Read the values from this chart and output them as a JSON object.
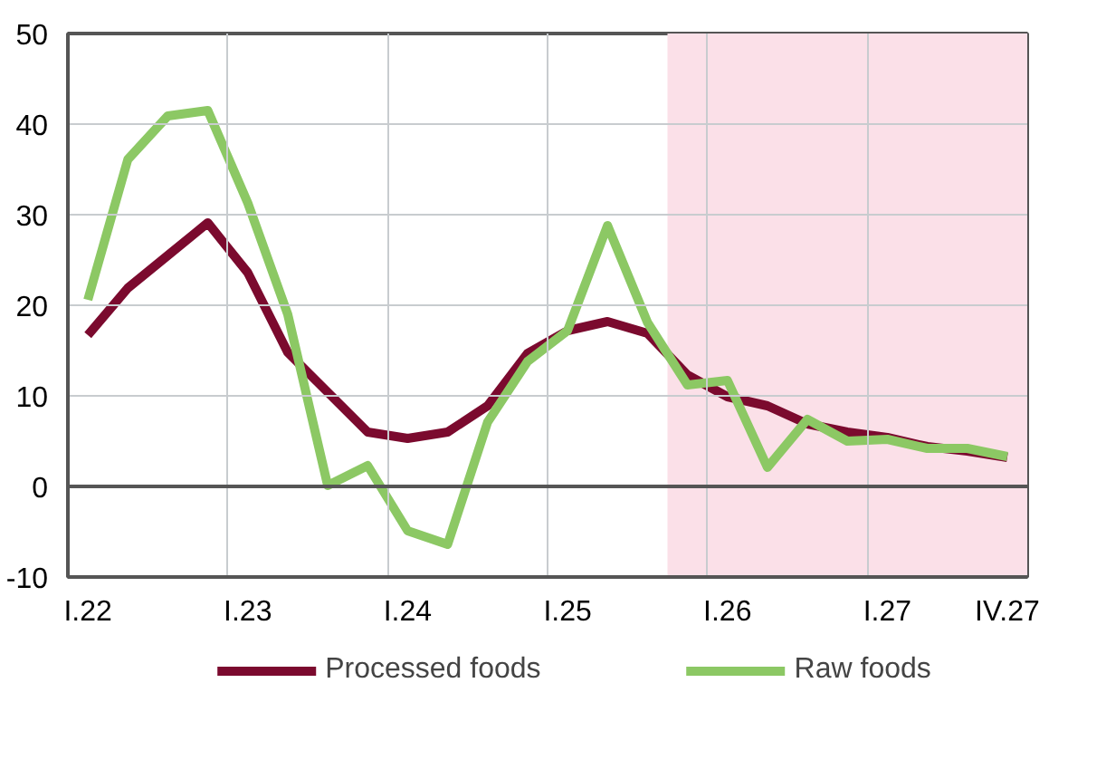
{
  "chart_data": {
    "type": "line",
    "categories": [
      "I.22",
      null,
      null,
      null,
      "I.23",
      null,
      null,
      null,
      "I.24",
      null,
      null,
      null,
      "I.25",
      null,
      null,
      null,
      "I.26",
      null,
      null,
      null,
      "I.27",
      null,
      null,
      "IV.27"
    ],
    "series": [
      {
        "name": "Processed foods",
        "color": "#7b0a2e",
        "values": [
          16.7,
          21.9,
          25.5,
          29.1,
          23.6,
          14.8,
          10.4,
          6.0,
          5.3,
          6.0,
          8.9,
          14.7,
          17.2,
          18.2,
          16.9,
          12.3,
          9.9,
          8.9,
          6.9,
          6.0,
          5.4,
          4.4,
          3.9,
          3.2
        ]
      },
      {
        "name": "Raw foods",
        "color": "#8cc864",
        "values": [
          20.6,
          36.1,
          40.9,
          41.5,
          31.3,
          19.0,
          0.1,
          2.3,
          -4.9,
          -6.4,
          7.1,
          13.8,
          17.2,
          28.8,
          18.1,
          11.2,
          11.7,
          2.1,
          7.4,
          5.0,
          5.2,
          4.2,
          4.2,
          3.3
        ]
      }
    ],
    "ylim": [
      -10,
      50
    ],
    "yticks": [
      -10,
      0,
      10,
      20,
      30,
      40,
      50
    ],
    "ref_lines": [
      {
        "axis": "y",
        "value": 0,
        "color": "#555555"
      }
    ],
    "grid": true,
    "legend": "bottom",
    "line_style": "solid",
    "marker": "none"
  }
}
